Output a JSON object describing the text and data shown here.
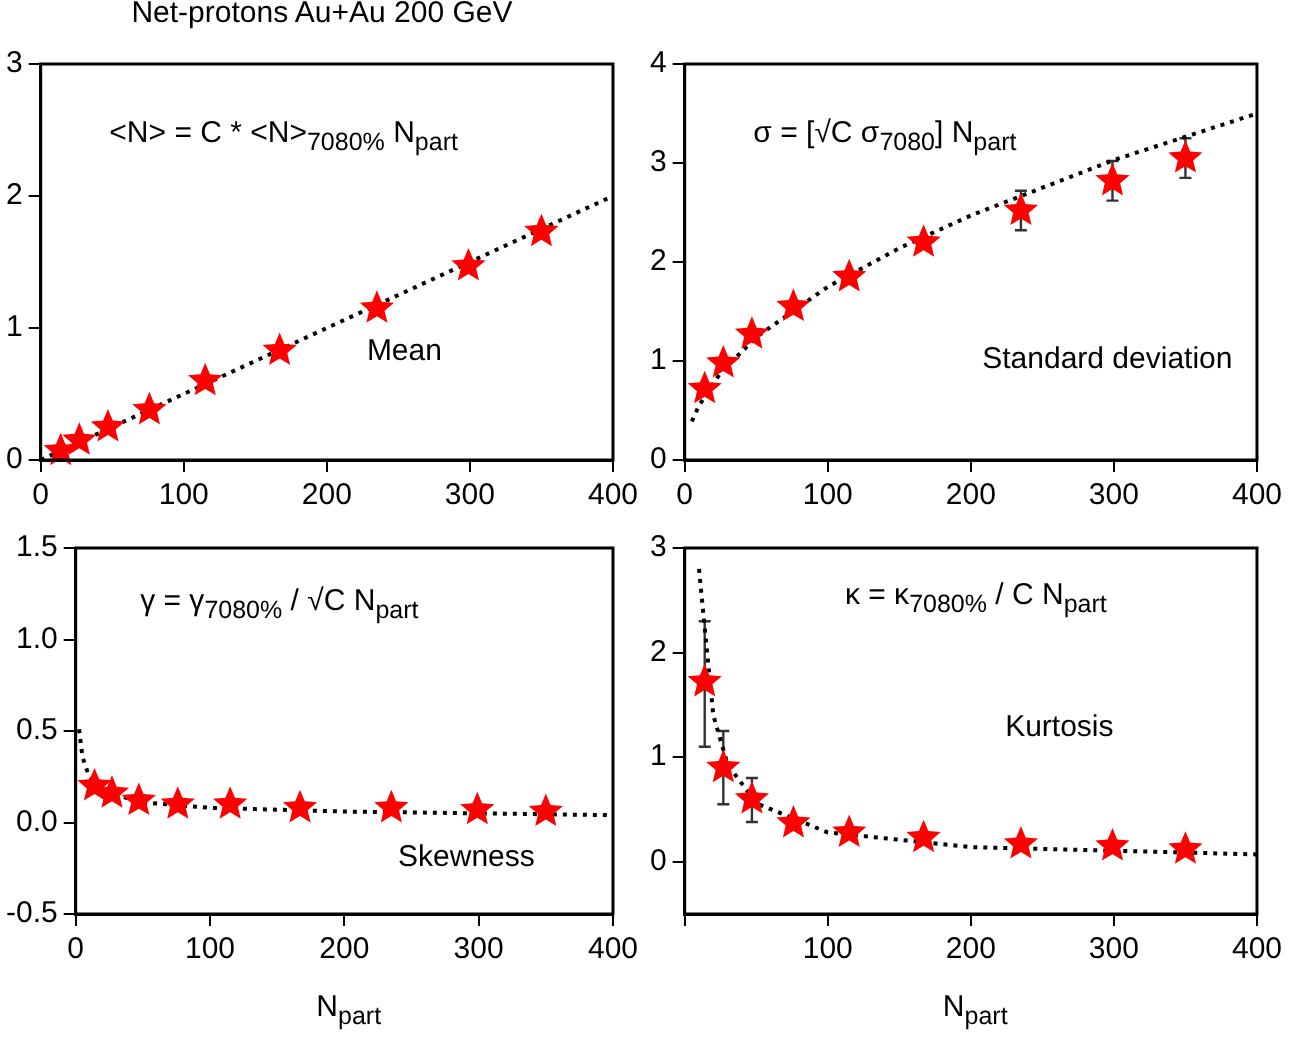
{
  "chart_data": [
    {
      "type": "scatter",
      "title": "Net-protons Au+Au 200 GeV",
      "annotations": [
        "<N> = C * <N>$_{7080%}$ N$_{part}$",
        "Mean"
      ],
      "xlim": [
        0,
        400
      ],
      "xticks": [
        0,
        100,
        200,
        300,
        400
      ],
      "ylim": [
        0,
        3
      ],
      "yticks": [
        0,
        1,
        2,
        3
      ],
      "grid": false,
      "legend": false,
      "series": [
        {
          "type": "scatter",
          "marker": "star",
          "color": "#ff0000",
          "x": [
            14,
            27,
            47,
            76,
            115,
            167,
            235,
            299,
            350
          ],
          "values": [
            0.07,
            0.15,
            0.25,
            0.38,
            0.6,
            0.83,
            1.15,
            1.47,
            1.73
          ]
        },
        {
          "type": "line",
          "marker": "none",
          "line_style": "dotted",
          "color": "#000000",
          "x": [
            0,
            400
          ],
          "values": [
            0,
            2.0
          ]
        }
      ]
    },
    {
      "type": "scatter",
      "annotations": [
        "σ = [√C σ$_{7080}$] N$_{part}$",
        "Standard deviation"
      ],
      "xlim": [
        0,
        400
      ],
      "xticks": [
        0,
        100,
        200,
        300,
        400
      ],
      "ylim": [
        0,
        4
      ],
      "yticks": [
        0,
        1,
        2,
        3,
        4
      ],
      "grid": false,
      "legend": false,
      "series": [
        {
          "type": "scatter",
          "marker": "star",
          "color": "#ff0000",
          "x": [
            14,
            27,
            47,
            76,
            115,
            167,
            235,
            299,
            350
          ],
          "values": [
            0.72,
            0.98,
            1.27,
            1.55,
            1.85,
            2.2,
            2.52,
            2.82,
            3.05
          ],
          "errors": [
            null,
            null,
            null,
            null,
            null,
            null,
            0.2,
            0.2,
            0.2
          ]
        },
        {
          "type": "line",
          "marker": "none",
          "line_style": "dotted",
          "color": "#000000",
          "x": [
            5,
            10,
            25,
            50,
            100,
            150,
            200,
            300,
            400
          ],
          "values": [
            0.39,
            0.55,
            0.88,
            1.24,
            1.75,
            2.14,
            2.47,
            3.03,
            3.5
          ]
        }
      ]
    },
    {
      "type": "scatter",
      "xlabel": "N$_{part}$",
      "annotations": [
        "γ = γ$_{7080%}$  /  √C N$_{part}$",
        "Skewness"
      ],
      "xlim": [
        0,
        400
      ],
      "xticks": [
        0,
        100,
        200,
        300,
        400
      ],
      "ylim": [
        -0.5,
        1.5
      ],
      "yticks": [
        {
          "value": -0.5,
          "label": "-0.5"
        },
        {
          "value": 0,
          "label": "0.0"
        },
        {
          "value": 0.5,
          "label": "0.5"
        },
        {
          "value": 1,
          "label": "1.0"
        },
        {
          "value": 1.5,
          "label": "1.5"
        }
      ],
      "grid": false,
      "legend": false,
      "series": [
        {
          "type": "scatter",
          "marker": "star",
          "color": "#ff0000",
          "x": [
            14,
            27,
            47,
            76,
            115,
            167,
            235,
            299,
            350
          ],
          "values": [
            0.2,
            0.16,
            0.12,
            0.1,
            0.1,
            0.08,
            0.08,
            0.07,
            0.06
          ]
        },
        {
          "type": "line",
          "marker": "none",
          "line_style": "dotted",
          "color": "#000000",
          "x": [
            2.5,
            5,
            10,
            25,
            50,
            100,
            200,
            400
          ],
          "values": [
            0.51,
            0.36,
            0.25,
            0.16,
            0.11,
            0.08,
            0.06,
            0.04
          ]
        }
      ]
    },
    {
      "type": "scatter",
      "xlabel": "N$_{part}$",
      "annotations": [
        "κ = κ$_{7080%}$ /  C N$_{part}$",
        "Kurtosis"
      ],
      "xlim": [
        0,
        400
      ],
      "xticks": [
        {
          "value": 0,
          "label": null
        },
        100,
        200,
        300,
        400
      ],
      "ylim": [
        -0.5,
        3
      ],
      "yticks": [
        0,
        1,
        2,
        3
      ],
      "grid": false,
      "legend": false,
      "series": [
        {
          "type": "scatter",
          "marker": "star",
          "color": "#ff0000",
          "x": [
            14,
            27,
            47,
            76,
            115,
            167,
            235,
            299,
            350
          ],
          "values": [
            1.72,
            0.9,
            0.6,
            0.37,
            0.28,
            0.23,
            0.17,
            0.15,
            0.12
          ],
          "errors": [
            [
              1.1,
              2.3
            ],
            [
              0.55,
              1.25
            ],
            [
              0.38,
              0.8
            ],
            null,
            null,
            null,
            null,
            null,
            null
          ]
        },
        {
          "type": "line",
          "marker": "none",
          "line_style": "dotted",
          "color": "#000000",
          "x": [
            10,
            20,
            30,
            50,
            100,
            200,
            400
          ],
          "values": [
            2.8,
            1.4,
            0.93,
            0.56,
            0.28,
            0.14,
            0.07
          ]
        }
      ]
    }
  ]
}
